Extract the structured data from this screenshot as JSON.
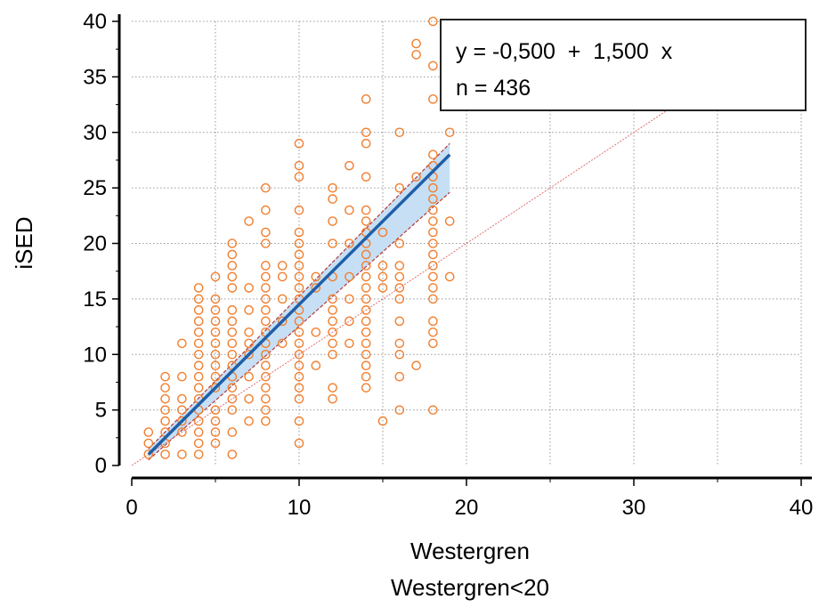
{
  "chart_data": {
    "type": "scatter",
    "xlabel": "Westergren",
    "subtitle": "Westergren<20",
    "ylabel": "iSED",
    "xlim": [
      0,
      40
    ],
    "ylim": [
      0,
      40
    ],
    "xticks": [
      "0",
      "10",
      "20",
      "30",
      "40"
    ],
    "yticks": [
      "0",
      "5",
      "10",
      "15",
      "20",
      "25",
      "30",
      "35",
      "40"
    ],
    "grid": true,
    "legend_position": "top-right",
    "regression": {
      "equation": "y = -0,500  +  1,500  x",
      "n_label": "n = 436",
      "intercept": -0.5,
      "slope": 1.5,
      "x_range": [
        1,
        19
      ]
    },
    "identity_line": true,
    "confidence_band": {
      "x": [
        1,
        19
      ],
      "lower": [
        0.5,
        24.6
      ],
      "upper": [
        1.5,
        29.0
      ]
    },
    "points": [
      [
        1,
        1
      ],
      [
        1,
        2
      ],
      [
        1,
        3
      ],
      [
        2,
        1
      ],
      [
        2,
        2
      ],
      [
        2,
        3
      ],
      [
        2,
        4
      ],
      [
        2,
        5
      ],
      [
        2,
        6
      ],
      [
        2,
        7
      ],
      [
        2,
        8
      ],
      [
        3,
        1
      ],
      [
        3,
        3
      ],
      [
        3,
        4
      ],
      [
        3,
        5
      ],
      [
        3,
        6
      ],
      [
        3,
        8
      ],
      [
        3,
        11
      ],
      [
        4,
        1
      ],
      [
        4,
        2
      ],
      [
        4,
        3
      ],
      [
        4,
        4
      ],
      [
        4,
        5
      ],
      [
        4,
        6
      ],
      [
        4,
        7
      ],
      [
        4,
        8
      ],
      [
        4,
        9
      ],
      [
        4,
        10
      ],
      [
        4,
        11
      ],
      [
        4,
        12
      ],
      [
        4,
        13
      ],
      [
        4,
        14
      ],
      [
        4,
        15
      ],
      [
        4,
        16
      ],
      [
        5,
        2
      ],
      [
        5,
        3
      ],
      [
        5,
        4
      ],
      [
        5,
        5
      ],
      [
        5,
        7
      ],
      [
        5,
        8
      ],
      [
        5,
        9
      ],
      [
        5,
        10
      ],
      [
        5,
        11
      ],
      [
        5,
        12
      ],
      [
        5,
        13
      ],
      [
        5,
        14
      ],
      [
        5,
        15
      ],
      [
        5,
        17
      ],
      [
        6,
        1
      ],
      [
        6,
        3
      ],
      [
        6,
        5
      ],
      [
        6,
        6
      ],
      [
        6,
        7
      ],
      [
        6,
        8
      ],
      [
        6,
        9
      ],
      [
        6,
        10
      ],
      [
        6,
        11
      ],
      [
        6,
        12
      ],
      [
        6,
        13
      ],
      [
        6,
        14
      ],
      [
        6,
        16
      ],
      [
        6,
        17
      ],
      [
        6,
        18
      ],
      [
        6,
        19
      ],
      [
        6,
        20
      ],
      [
        7,
        4
      ],
      [
        7,
        6
      ],
      [
        7,
        8
      ],
      [
        7,
        10
      ],
      [
        7,
        11
      ],
      [
        7,
        12
      ],
      [
        7,
        14
      ],
      [
        7,
        16
      ],
      [
        7,
        22
      ],
      [
        8,
        4
      ],
      [
        8,
        5
      ],
      [
        8,
        6
      ],
      [
        8,
        7
      ],
      [
        8,
        8
      ],
      [
        8,
        9
      ],
      [
        8,
        10
      ],
      [
        8,
        11
      ],
      [
        8,
        12
      ],
      [
        8,
        13
      ],
      [
        8,
        14
      ],
      [
        8,
        15
      ],
      [
        8,
        16
      ],
      [
        8,
        17
      ],
      [
        8,
        18
      ],
      [
        8,
        20
      ],
      [
        8,
        21
      ],
      [
        8,
        23
      ],
      [
        8,
        25
      ],
      [
        9,
        11
      ],
      [
        9,
        13
      ],
      [
        9,
        15
      ],
      [
        9,
        17
      ],
      [
        9,
        18
      ],
      [
        10,
        2
      ],
      [
        10,
        4
      ],
      [
        10,
        6
      ],
      [
        10,
        7
      ],
      [
        10,
        8
      ],
      [
        10,
        9
      ],
      [
        10,
        10
      ],
      [
        10,
        11
      ],
      [
        10,
        12
      ],
      [
        10,
        13
      ],
      [
        10,
        14
      ],
      [
        10,
        15
      ],
      [
        10,
        16
      ],
      [
        10,
        17
      ],
      [
        10,
        18
      ],
      [
        10,
        19
      ],
      [
        10,
        20
      ],
      [
        10,
        21
      ],
      [
        10,
        23
      ],
      [
        10,
        26
      ],
      [
        10,
        27
      ],
      [
        10,
        29
      ],
      [
        11,
        9
      ],
      [
        11,
        12
      ],
      [
        11,
        16
      ],
      [
        11,
        17
      ],
      [
        12,
        6
      ],
      [
        12,
        7
      ],
      [
        12,
        10
      ],
      [
        12,
        11
      ],
      [
        12,
        12
      ],
      [
        12,
        13
      ],
      [
        12,
        14
      ],
      [
        12,
        15
      ],
      [
        12,
        17
      ],
      [
        12,
        20
      ],
      [
        12,
        22
      ],
      [
        12,
        24
      ],
      [
        12,
        25
      ],
      [
        13,
        11
      ],
      [
        13,
        13
      ],
      [
        13,
        15
      ],
      [
        13,
        17
      ],
      [
        13,
        20
      ],
      [
        13,
        23
      ],
      [
        13,
        27
      ],
      [
        14,
        7
      ],
      [
        14,
        8
      ],
      [
        14,
        9
      ],
      [
        14,
        10
      ],
      [
        14,
        11
      ],
      [
        14,
        12
      ],
      [
        14,
        13
      ],
      [
        14,
        14
      ],
      [
        14,
        15
      ],
      [
        14,
        16
      ],
      [
        14,
        17
      ],
      [
        14,
        18
      ],
      [
        14,
        19
      ],
      [
        14,
        20
      ],
      [
        14,
        21
      ],
      [
        14,
        22
      ],
      [
        14,
        23
      ],
      [
        14,
        26
      ],
      [
        14,
        29
      ],
      [
        14,
        30
      ],
      [
        14,
        33
      ],
      [
        15,
        4
      ],
      [
        15,
        16
      ],
      [
        15,
        17
      ],
      [
        15,
        18
      ],
      [
        15,
        21
      ],
      [
        16,
        5
      ],
      [
        16,
        8
      ],
      [
        16,
        10
      ],
      [
        16,
        11
      ],
      [
        16,
        13
      ],
      [
        16,
        15
      ],
      [
        16,
        16
      ],
      [
        16,
        17
      ],
      [
        16,
        18
      ],
      [
        16,
        20
      ],
      [
        16,
        25
      ],
      [
        16,
        30
      ],
      [
        17,
        9
      ],
      [
        17,
        26
      ],
      [
        17,
        37
      ],
      [
        17,
        38
      ],
      [
        18,
        5
      ],
      [
        18,
        11
      ],
      [
        18,
        12
      ],
      [
        18,
        13
      ],
      [
        18,
        15
      ],
      [
        18,
        16
      ],
      [
        18,
        17
      ],
      [
        18,
        18
      ],
      [
        18,
        19
      ],
      [
        18,
        20
      ],
      [
        18,
        21
      ],
      [
        18,
        22
      ],
      [
        18,
        23
      ],
      [
        18,
        24
      ],
      [
        18,
        25
      ],
      [
        18,
        26
      ],
      [
        18,
        27
      ],
      [
        18,
        28
      ],
      [
        18,
        33
      ],
      [
        18,
        36
      ],
      [
        18,
        40
      ],
      [
        19,
        17
      ],
      [
        19,
        22
      ],
      [
        19,
        30
      ]
    ],
    "colors": {
      "points": "#f07f2f",
      "fit_line": "#1f5fa8",
      "band_fill": "#c6dff5",
      "band_edge": "#b33a3a",
      "identity": "#e07070",
      "grid": "#9a9a9a"
    }
  }
}
